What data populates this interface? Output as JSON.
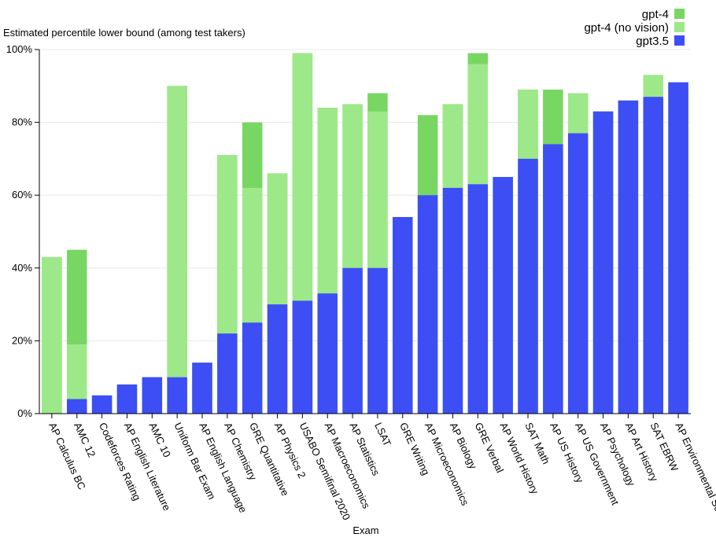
{
  "chart_data": {
    "type": "bar",
    "stacked": "overlay",
    "title": "",
    "ylabel": "Estimated percentile lower bound (among test takers)",
    "xlabel": "Exam",
    "ylim": [
      0,
      100
    ],
    "yticks": [
      "0%",
      "20%",
      "40%",
      "60%",
      "80%",
      "100%"
    ],
    "grid": true,
    "legend_position": "top-right",
    "categories": [
      "AP Calculus BC",
      "AMC 12",
      "Codeforces Rating",
      "AP English Literature",
      "AMC 10",
      "Uniform Bar Exam",
      "AP English Language",
      "AP Chemistry",
      "GRE Quantitative",
      "AP Physics 2",
      "USABO Semifinal 2020",
      "AP Macroeconomics",
      "AP Statistics",
      "LSAT",
      "GRE Writing",
      "AP Microeconomics",
      "AP Biology",
      "GRE Verbal",
      "AP World History",
      "SAT Math",
      "AP US History",
      "AP US Government",
      "AP Psychology",
      "AP Art History",
      "SAT EBRW",
      "AP Environmental Science"
    ],
    "series": [
      {
        "name": "gpt-4",
        "color": "#78d663",
        "values": [
          43,
          45,
          5,
          8,
          10,
          90,
          14,
          71,
          80,
          66,
          99,
          84,
          85,
          88,
          54,
          82,
          85,
          99,
          65,
          89,
          89,
          88,
          83,
          86,
          93,
          91
        ]
      },
      {
        "name": "gpt-4 (no vision)",
        "color": "#9de889",
        "values": [
          43,
          19,
          5,
          8,
          10,
          90,
          14,
          71,
          62,
          66,
          99,
          84,
          85,
          83,
          54,
          60,
          85,
          96,
          65,
          89,
          74,
          88,
          83,
          86,
          93,
          91
        ]
      },
      {
        "name": "gpt3.5",
        "color": "#3d4ef5",
        "values": [
          0,
          4,
          5,
          8,
          10,
          10,
          14,
          22,
          25,
          30,
          31,
          33,
          40,
          40,
          54,
          60,
          62,
          63,
          65,
          70,
          74,
          77,
          83,
          86,
          87,
          91
        ]
      }
    ]
  }
}
